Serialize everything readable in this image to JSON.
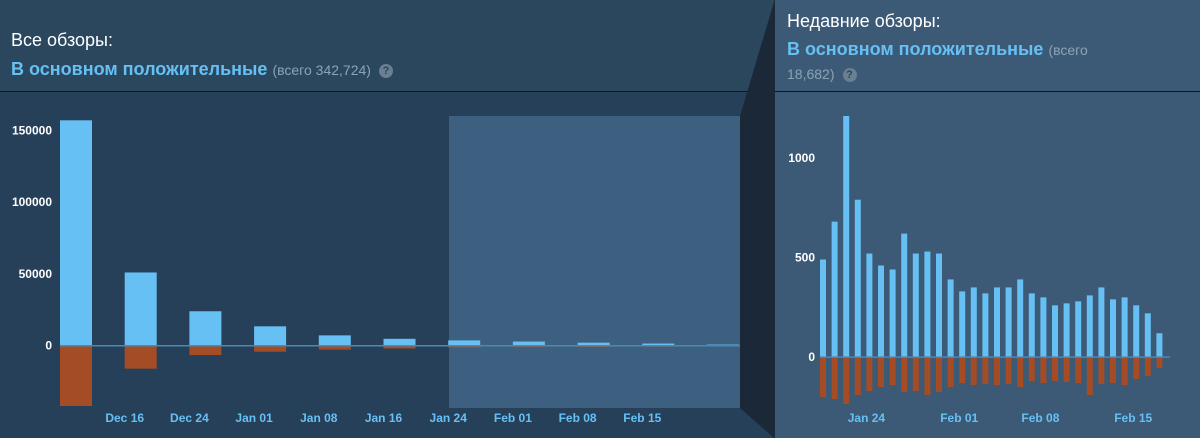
{
  "all_reviews": {
    "title": "Все обзоры:",
    "summary": "В основном положительные",
    "count_text": "(всего 342,724)",
    "help_icon": "question-icon"
  },
  "recent_reviews": {
    "title": "Недавние обзоры:",
    "summary": "В основном положительные",
    "count_line1": "(всего",
    "count_line2": "18,682)",
    "help_icon": "question-icon"
  },
  "colors": {
    "positive": "#66c0f4",
    "negative": "#a34c25",
    "selection": "#3d6080",
    "baseline": "#4b88b5"
  },
  "chart_data": [
    {
      "type": "bar",
      "id": "all-reviews-histogram",
      "title": "",
      "xlabel": "",
      "ylabel": "",
      "ylim": [
        -42000,
        160000
      ],
      "yticks": [
        0,
        50000,
        100000,
        150000
      ],
      "ytick_labels": [
        "0",
        "50000",
        "100000",
        "150000"
      ],
      "tick_labels": [
        "Dec 16",
        "Dec 24",
        "Jan 01",
        "Jan 08",
        "Jan 16",
        "Jan 24",
        "Feb 01",
        "Feb 08",
        "Feb 15"
      ],
      "tick_indexes": [
        0.5,
        1.5,
        2.5,
        3.5,
        4.5,
        5.5,
        6.5,
        7.5,
        8.5
      ],
      "series": [
        {
          "values": [
            157000,
            51000,
            24000,
            13500,
            7200,
            4800,
            3700,
            2900,
            2100,
            1500,
            800
          ]
        },
        {
          "values": [
            -42000,
            -16000,
            -6500,
            -4200,
            -2700,
            -2000,
            -1400,
            -1100,
            -900,
            -700,
            -400
          ]
        }
      ],
      "highlight_range": [
        "Jan 24",
        "Feb 15"
      ],
      "grid": false
    },
    {
      "type": "bar",
      "id": "recent-reviews-histogram",
      "title": "",
      "xlabel": "",
      "ylabel": "",
      "ylim": [
        -245,
        1210
      ],
      "yticks": [
        0,
        500,
        1000
      ],
      "ytick_labels": [
        "0",
        "500",
        "1000"
      ],
      "tick_labels": [
        "Jan 24",
        "Feb 01",
        "Feb 08",
        "Feb 15"
      ],
      "tick_indexes": [
        3.5,
        11.5,
        18.5,
        26.5
      ],
      "series": [
        {
          "values": [
            490,
            680,
            1210,
            790,
            520,
            460,
            440,
            620,
            520,
            530,
            520,
            390,
            330,
            350,
            320,
            350,
            350,
            390,
            320,
            300,
            260,
            270,
            280,
            310,
            350,
            290,
            300,
            260,
            220,
            120
          ]
        },
        {
          "values": [
            -200,
            -210,
            -235,
            -190,
            -170,
            -150,
            -140,
            -175,
            -170,
            -190,
            -175,
            -150,
            -130,
            -140,
            -135,
            -140,
            -135,
            -150,
            -120,
            -130,
            -120,
            -125,
            -130,
            -190,
            -135,
            -130,
            -140,
            -110,
            -95,
            -55
          ]
        }
      ],
      "grid": false
    }
  ]
}
